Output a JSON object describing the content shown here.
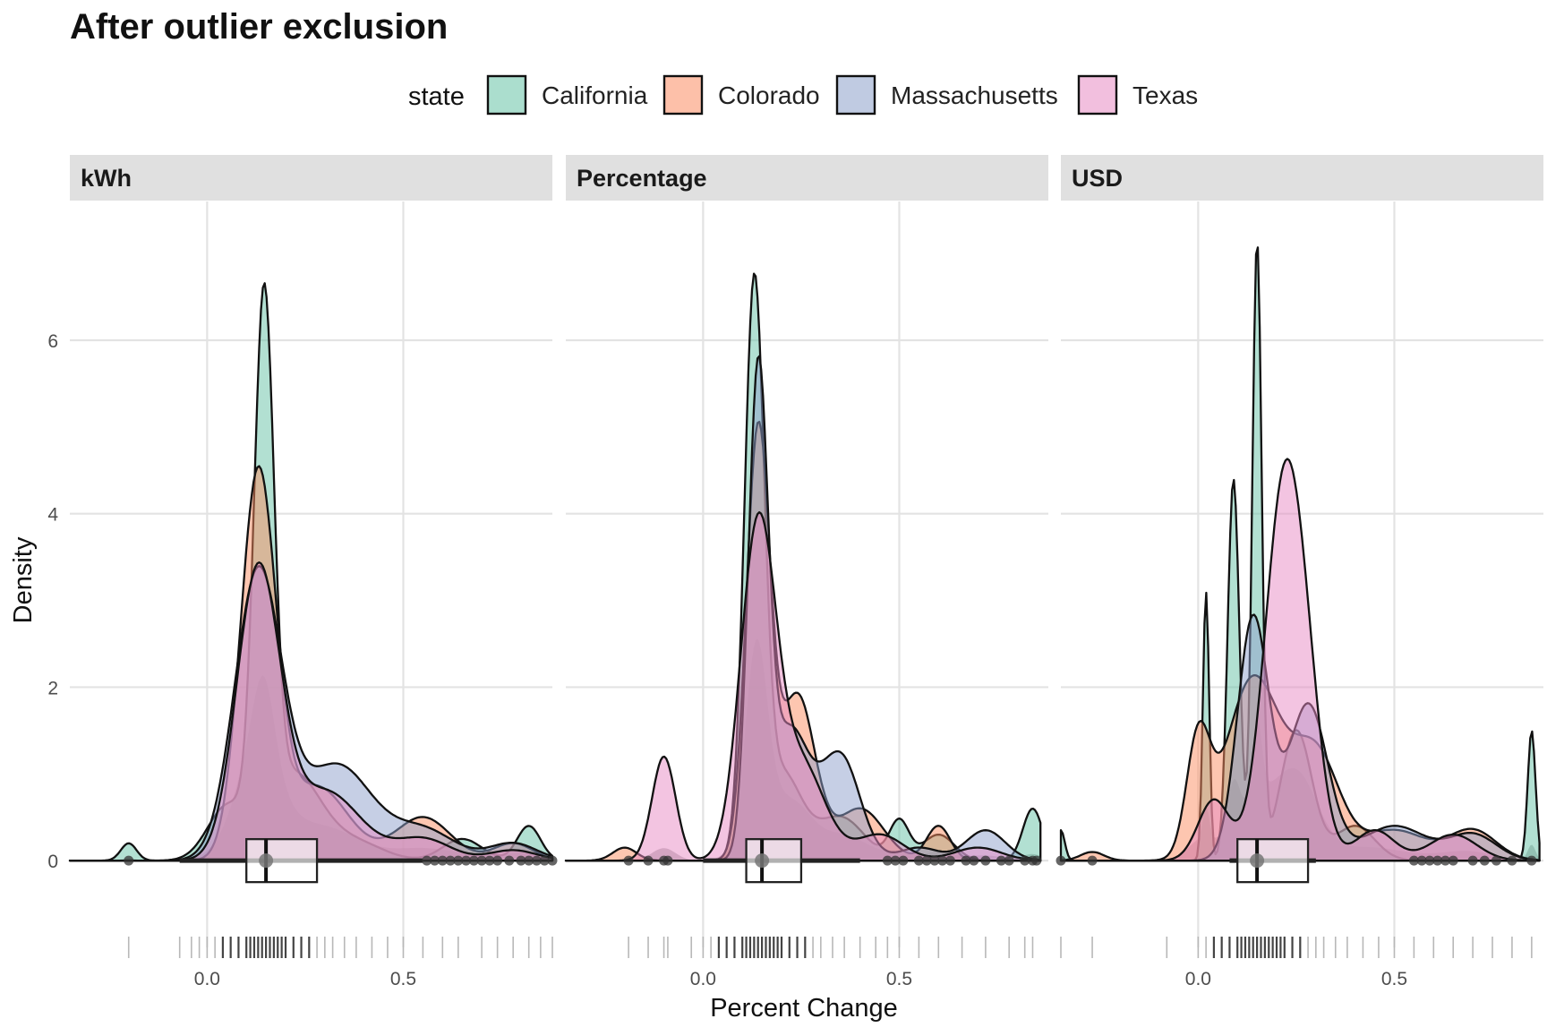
{
  "chart_data": {
    "type": "area",
    "title": "After outlier exclusion",
    "xlabel": "Percent Change",
    "ylabel": "Density",
    "legend": {
      "title": "state",
      "position": "top",
      "items": [
        {
          "label": "California",
          "color": "#66C2A5"
        },
        {
          "label": "Colorado",
          "color": "#FC8D62"
        },
        {
          "label": "Massachusetts",
          "color": "#8DA0CB"
        },
        {
          "label": "Texas",
          "color": "#E78AC3"
        }
      ]
    },
    "xlim": [
      -0.35,
      0.88
    ],
    "ylim": [
      -1.0,
      7.6
    ],
    "x_ticks": [
      0.0,
      0.5
    ],
    "x_tick_labels": [
      "0.0",
      "0.5"
    ],
    "y_ticks": [
      0,
      2,
      4,
      6
    ],
    "y_tick_labels": [
      "0",
      "2",
      "4",
      "6"
    ],
    "grid": true,
    "panels": [
      {
        "label": "kWh",
        "x_range": [
          -0.35,
          0.88
        ],
        "series": [
          {
            "name": "California",
            "peaks": [
              [
                -0.2,
                0.2,
                0.02
              ],
              [
                0.05,
                0.6,
                0.05
              ],
              [
                0.145,
                6.0,
                0.025
              ],
              [
                0.22,
                1.0,
                0.07
              ],
              [
                0.38,
                0.2,
                0.07
              ],
              [
                0.65,
                0.25,
                0.05
              ],
              [
                0.82,
                0.4,
                0.03
              ]
            ]
          },
          {
            "name": "Colorado",
            "peaks": [
              [
                0.13,
                4.4,
                0.045
              ],
              [
                0.28,
                0.85,
                0.08
              ],
              [
                0.55,
                0.5,
                0.07
              ],
              [
                0.78,
                0.2,
                0.05
              ]
            ]
          },
          {
            "name": "Massachusetts",
            "peaks": [
              [
                0.13,
                3.3,
                0.06
              ],
              [
                0.33,
                1.1,
                0.09
              ],
              [
                0.55,
                0.35,
                0.08
              ],
              [
                0.78,
                0.2,
                0.06
              ]
            ]
          },
          {
            "name": "Texas",
            "peaks": [
              [
                0.13,
                3.3,
                0.055
              ],
              [
                0.3,
                0.8,
                0.09
              ],
              [
                0.55,
                0.25,
                0.07
              ],
              [
                0.78,
                0.12,
                0.06
              ]
            ]
          }
        ],
        "box": {
          "q1": 0.1,
          "median": 0.15,
          "q3": 0.28,
          "whisker_low": -0.07,
          "whisker_high": 0.55,
          "mean": 0.15
        },
        "points": [
          -0.2,
          0.56,
          0.58,
          0.6,
          0.62,
          0.64,
          0.66,
          0.68,
          0.7,
          0.72,
          0.74,
          0.77,
          0.8,
          0.82,
          0.84,
          0.86,
          0.88
        ],
        "rug": [
          -0.2,
          -0.07,
          -0.04,
          -0.02,
          0.0,
          0.02,
          0.04,
          0.06,
          0.08,
          0.1,
          0.11,
          0.12,
          0.13,
          0.14,
          0.15,
          0.16,
          0.17,
          0.18,
          0.19,
          0.2,
          0.22,
          0.24,
          0.26,
          0.28,
          0.3,
          0.32,
          0.35,
          0.38,
          0.42,
          0.46,
          0.5,
          0.55,
          0.6,
          0.64,
          0.7,
          0.74,
          0.78,
          0.82,
          0.85,
          0.88
        ]
      },
      {
        "label": "Percentage",
        "x_range": [
          -0.35,
          0.86
        ],
        "series": [
          {
            "name": "California",
            "peaks": [
              [
                0.13,
                6.4,
                0.025
              ],
              [
                0.2,
                1.0,
                0.05
              ],
              [
                0.35,
                0.5,
                0.06
              ],
              [
                0.5,
                0.45,
                0.025
              ],
              [
                0.6,
                0.3,
                0.04
              ],
              [
                0.84,
                0.6,
                0.025
              ]
            ]
          },
          {
            "name": "Colorado",
            "peaks": [
              [
                -0.2,
                0.15,
                0.03
              ],
              [
                0.14,
                4.9,
                0.03
              ],
              [
                0.24,
                1.9,
                0.045
              ],
              [
                0.4,
                0.6,
                0.06
              ],
              [
                0.6,
                0.4,
                0.03
              ]
            ]
          },
          {
            "name": "Massachusetts",
            "peaks": [
              [
                0.14,
                5.4,
                0.025
              ],
              [
                0.22,
                1.5,
                0.05
              ],
              [
                0.35,
                1.2,
                0.05
              ],
              [
                0.55,
                0.15,
                0.05
              ],
              [
                0.72,
                0.35,
                0.05
              ]
            ]
          },
          {
            "name": "Texas",
            "peaks": [
              [
                -0.1,
                1.2,
                0.03
              ],
              [
                0.14,
                3.8,
                0.045
              ],
              [
                0.25,
                1.1,
                0.06
              ],
              [
                0.45,
                0.3,
                0.06
              ],
              [
                0.7,
                0.15,
                0.06
              ]
            ]
          }
        ],
        "box": {
          "q1": 0.11,
          "median": 0.15,
          "q3": 0.25,
          "whisker_low": 0.0,
          "whisker_high": 0.4,
          "mean": 0.15
        },
        "points": [
          -0.19,
          -0.14,
          -0.1,
          -0.09,
          0.47,
          0.49,
          0.51,
          0.55,
          0.57,
          0.59,
          0.61,
          0.63,
          0.67,
          0.69,
          0.72,
          0.76,
          0.78,
          0.82,
          0.84,
          0.85
        ],
        "rug": [
          -0.19,
          -0.14,
          -0.1,
          -0.09,
          -0.03,
          0.0,
          0.02,
          0.04,
          0.06,
          0.08,
          0.1,
          0.11,
          0.12,
          0.13,
          0.14,
          0.15,
          0.16,
          0.17,
          0.18,
          0.19,
          0.2,
          0.22,
          0.24,
          0.26,
          0.28,
          0.3,
          0.33,
          0.36,
          0.4,
          0.44,
          0.47,
          0.5,
          0.55,
          0.6,
          0.66,
          0.72,
          0.78,
          0.82,
          0.84
        ]
      },
      {
        "label": "USD",
        "x_range": [
          -0.35,
          0.87
        ],
        "series": [
          {
            "name": "California",
            "peaks": [
              [
                -0.35,
                0.35,
                0.01
              ],
              [
                0.02,
                3.1,
                0.008
              ],
              [
                0.09,
                4.4,
                0.015
              ],
              [
                0.15,
                7.1,
                0.012
              ],
              [
                0.25,
                1.5,
                0.04
              ],
              [
                0.4,
                0.4,
                0.05
              ],
              [
                0.85,
                1.5,
                0.01
              ]
            ]
          },
          {
            "name": "Colorado",
            "peaks": [
              [
                -0.27,
                0.1,
                0.03
              ],
              [
                0.0,
                1.3,
                0.03
              ],
              [
                0.14,
                2.1,
                0.07
              ],
              [
                0.3,
                1.2,
                0.06
              ],
              [
                0.5,
                0.35,
                0.08
              ],
              [
                0.7,
                0.35,
                0.06
              ]
            ]
          },
          {
            "name": "Massachusetts",
            "peaks": [
              [
                0.14,
                2.8,
                0.04
              ],
              [
                0.28,
                1.8,
                0.05
              ],
              [
                0.5,
                0.4,
                0.08
              ],
              [
                0.7,
                0.3,
                0.06
              ]
            ]
          },
          {
            "name": "Texas",
            "peaks": [
              [
                0.04,
                0.7,
                0.04
              ],
              [
                0.22,
                4.3,
                0.05
              ],
              [
                0.28,
                0.9,
                0.04
              ],
              [
                0.45,
                0.35,
                0.05
              ],
              [
                0.65,
                0.3,
                0.06
              ]
            ]
          }
        ],
        "box": {
          "q1": 0.1,
          "median": 0.15,
          "q3": 0.28,
          "whisker_low": 0.08,
          "whisker_high": 0.3,
          "mean": 0.15
        },
        "points": [
          -0.35,
          -0.27,
          0.55,
          0.57,
          0.59,
          0.61,
          0.63,
          0.65,
          0.7,
          0.73,
          0.76,
          0.8,
          0.85
        ],
        "rug": [
          -0.35,
          -0.27,
          -0.08,
          0.0,
          0.02,
          0.04,
          0.06,
          0.08,
          0.1,
          0.11,
          0.12,
          0.13,
          0.14,
          0.15,
          0.16,
          0.17,
          0.18,
          0.19,
          0.2,
          0.21,
          0.22,
          0.24,
          0.26,
          0.28,
          0.3,
          0.32,
          0.35,
          0.38,
          0.42,
          0.46,
          0.5,
          0.55,
          0.6,
          0.65,
          0.7,
          0.75,
          0.8,
          0.85
        ]
      }
    ]
  }
}
